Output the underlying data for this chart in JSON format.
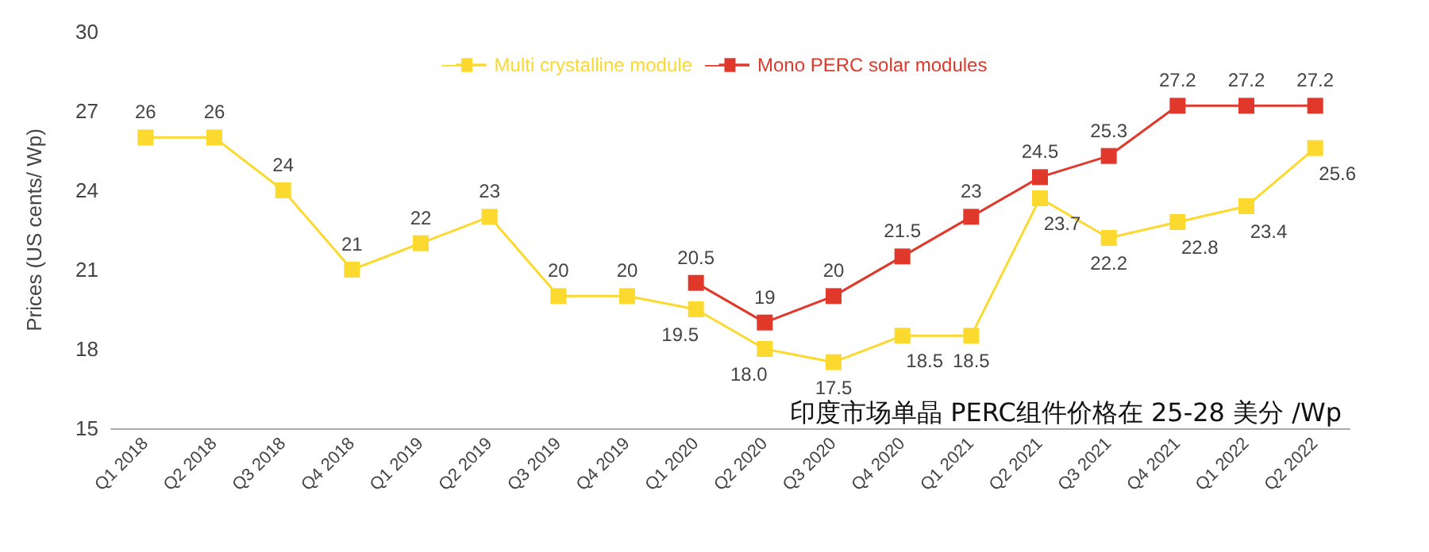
{
  "chart_data": {
    "type": "line",
    "ylabel": "Prices (US cents/ Wp)",
    "categories": [
      "Q1 2018",
      "Q2 2018",
      "Q3 2018",
      "Q4 2018",
      "Q1 2019",
      "Q2 2019",
      "Q3 2019",
      "Q4 2019",
      "Q1 2020",
      "Q2 2020",
      "Q3 2020",
      "Q4 2020",
      "Q1 2021",
      "Q2 2021",
      "Q3 2021",
      "Q4 2021",
      "Q1 2022",
      "Q2 2022"
    ],
    "series": [
      {
        "name": "Multi crystalline module",
        "color": "#fcd92e",
        "values": [
          26,
          26,
          24,
          21,
          22,
          23,
          20,
          20,
          19.5,
          18.0,
          17.5,
          18.5,
          18.5,
          23.7,
          22.2,
          22.8,
          23.4,
          25.6
        ],
        "value_labels": [
          "26",
          "26",
          "24",
          "21",
          "22",
          "23",
          "20",
          "20",
          "19.5",
          "18.0",
          "17.5",
          "18.5",
          "18.5",
          "23.7",
          "22.2",
          "22.8",
          "23.4",
          "25.6"
        ]
      },
      {
        "name": "Mono PERC solar modules",
        "color": "#e0392b",
        "values": [
          null,
          null,
          null,
          null,
          null,
          null,
          null,
          null,
          20.5,
          19,
          20,
          21.5,
          23,
          24.5,
          25.3,
          27.2,
          27.2,
          27.2
        ],
        "value_labels": [
          null,
          null,
          null,
          null,
          null,
          null,
          null,
          null,
          "20.5",
          "19",
          "20",
          "21.5",
          "23",
          "24.5",
          "25.3",
          "27.2",
          "27.2",
          "27.2"
        ]
      }
    ],
    "ylim": [
      15,
      30
    ],
    "yticks": [
      15,
      18,
      21,
      24,
      27,
      30
    ],
    "grid": false,
    "legend": "top",
    "marker": "square",
    "line_style": "solid",
    "annotations": [
      "印度市场单晶 PERC组件价格在 25-28 美分 /Wp"
    ]
  }
}
